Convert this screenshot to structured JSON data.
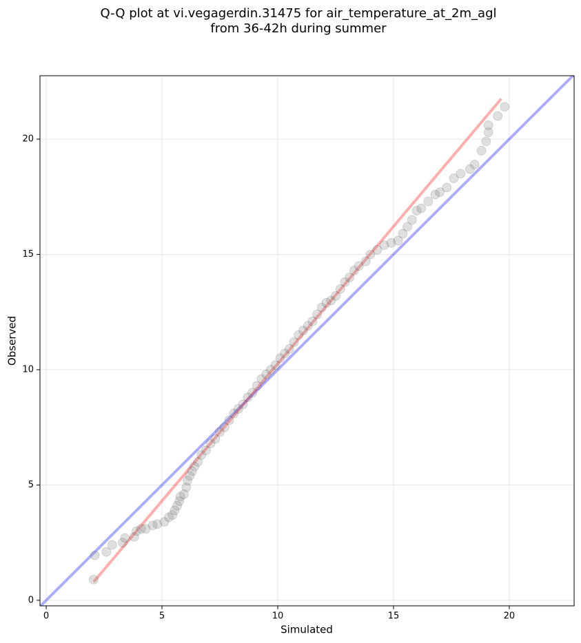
{
  "chart_data": {
    "type": "scatter",
    "title": [
      "Q-Q plot at vi.vegagerdin.31475 for air_temperature_at_2m_agl",
      "from 36-42h during summer"
    ],
    "x_label": "Simulated",
    "y_label": "Observed",
    "xlim": [
      -0.27,
      22.8
    ],
    "ylim": [
      -0.24,
      22.75
    ],
    "xticks": [
      0,
      5,
      10,
      15,
      20
    ],
    "yticks": [
      0,
      5,
      10,
      15,
      20
    ],
    "grid": true,
    "x": [
      2.05,
      2.1,
      2.6,
      2.85,
      3.3,
      3.4,
      3.8,
      3.9,
      4.1,
      4.3,
      4.6,
      4.8,
      5.1,
      5.3,
      5.45,
      5.55,
      5.65,
      5.75,
      5.8,
      5.95,
      6.05,
      6.1,
      6.2,
      6.3,
      6.4,
      6.55,
      6.7,
      6.9,
      7.1,
      7.3,
      7.5,
      7.7,
      7.9,
      8.1,
      8.3,
      8.5,
      8.7,
      8.9,
      9.1,
      9.3,
      9.5,
      9.7,
      9.9,
      10.1,
      10.3,
      10.5,
      10.7,
      10.9,
      11.1,
      11.3,
      11.5,
      11.7,
      11.9,
      12.1,
      12.3,
      12.5,
      12.7,
      12.9,
      13.1,
      13.3,
      13.5,
      13.8,
      14.0,
      14.3,
      14.6,
      14.9,
      15.2,
      15.4,
      15.6,
      15.8,
      16.0,
      16.2,
      16.5,
      16.8,
      17.0,
      17.3,
      17.6,
      17.9,
      18.3,
      18.5,
      18.8,
      19.0,
      19.1,
      19.1,
      19.5,
      19.8
    ],
    "series": [
      {
        "color": "#808080",
        "values": [
          0.9,
          1.95,
          2.1,
          2.4,
          2.5,
          2.7,
          2.75,
          3.0,
          3.1,
          3.1,
          3.25,
          3.3,
          3.4,
          3.6,
          3.7,
          3.9,
          4.1,
          4.3,
          4.5,
          4.6,
          4.9,
          5.2,
          5.4,
          5.6,
          5.8,
          6.0,
          6.3,
          6.5,
          6.8,
          7.0,
          7.3,
          7.5,
          7.8,
          8.1,
          8.3,
          8.5,
          8.8,
          9.0,
          9.3,
          9.6,
          9.8,
          10.0,
          10.2,
          10.5,
          10.7,
          10.9,
          11.2,
          11.5,
          11.7,
          11.9,
          12.1,
          12.4,
          12.7,
          12.9,
          13.0,
          13.2,
          13.5,
          13.8,
          14.0,
          14.3,
          14.5,
          14.7,
          15.0,
          15.2,
          15.4,
          15.5,
          15.6,
          15.9,
          16.2,
          16.5,
          16.9,
          17.0,
          17.3,
          17.6,
          17.7,
          17.9,
          18.3,
          18.5,
          18.7,
          18.9,
          19.5,
          19.9,
          20.3,
          20.6,
          21.0,
          21.4
        ]
      }
    ],
    "reference_lines": [
      {
        "color": "#0000ff",
        "x": [
          -0.27,
          22.8
        ],
        "y": [
          -0.27,
          22.8
        ]
      },
      {
        "color": "#ff0000",
        "x": [
          2.05,
          19.65
        ],
        "y": [
          0.8,
          21.75
        ]
      }
    ]
  }
}
